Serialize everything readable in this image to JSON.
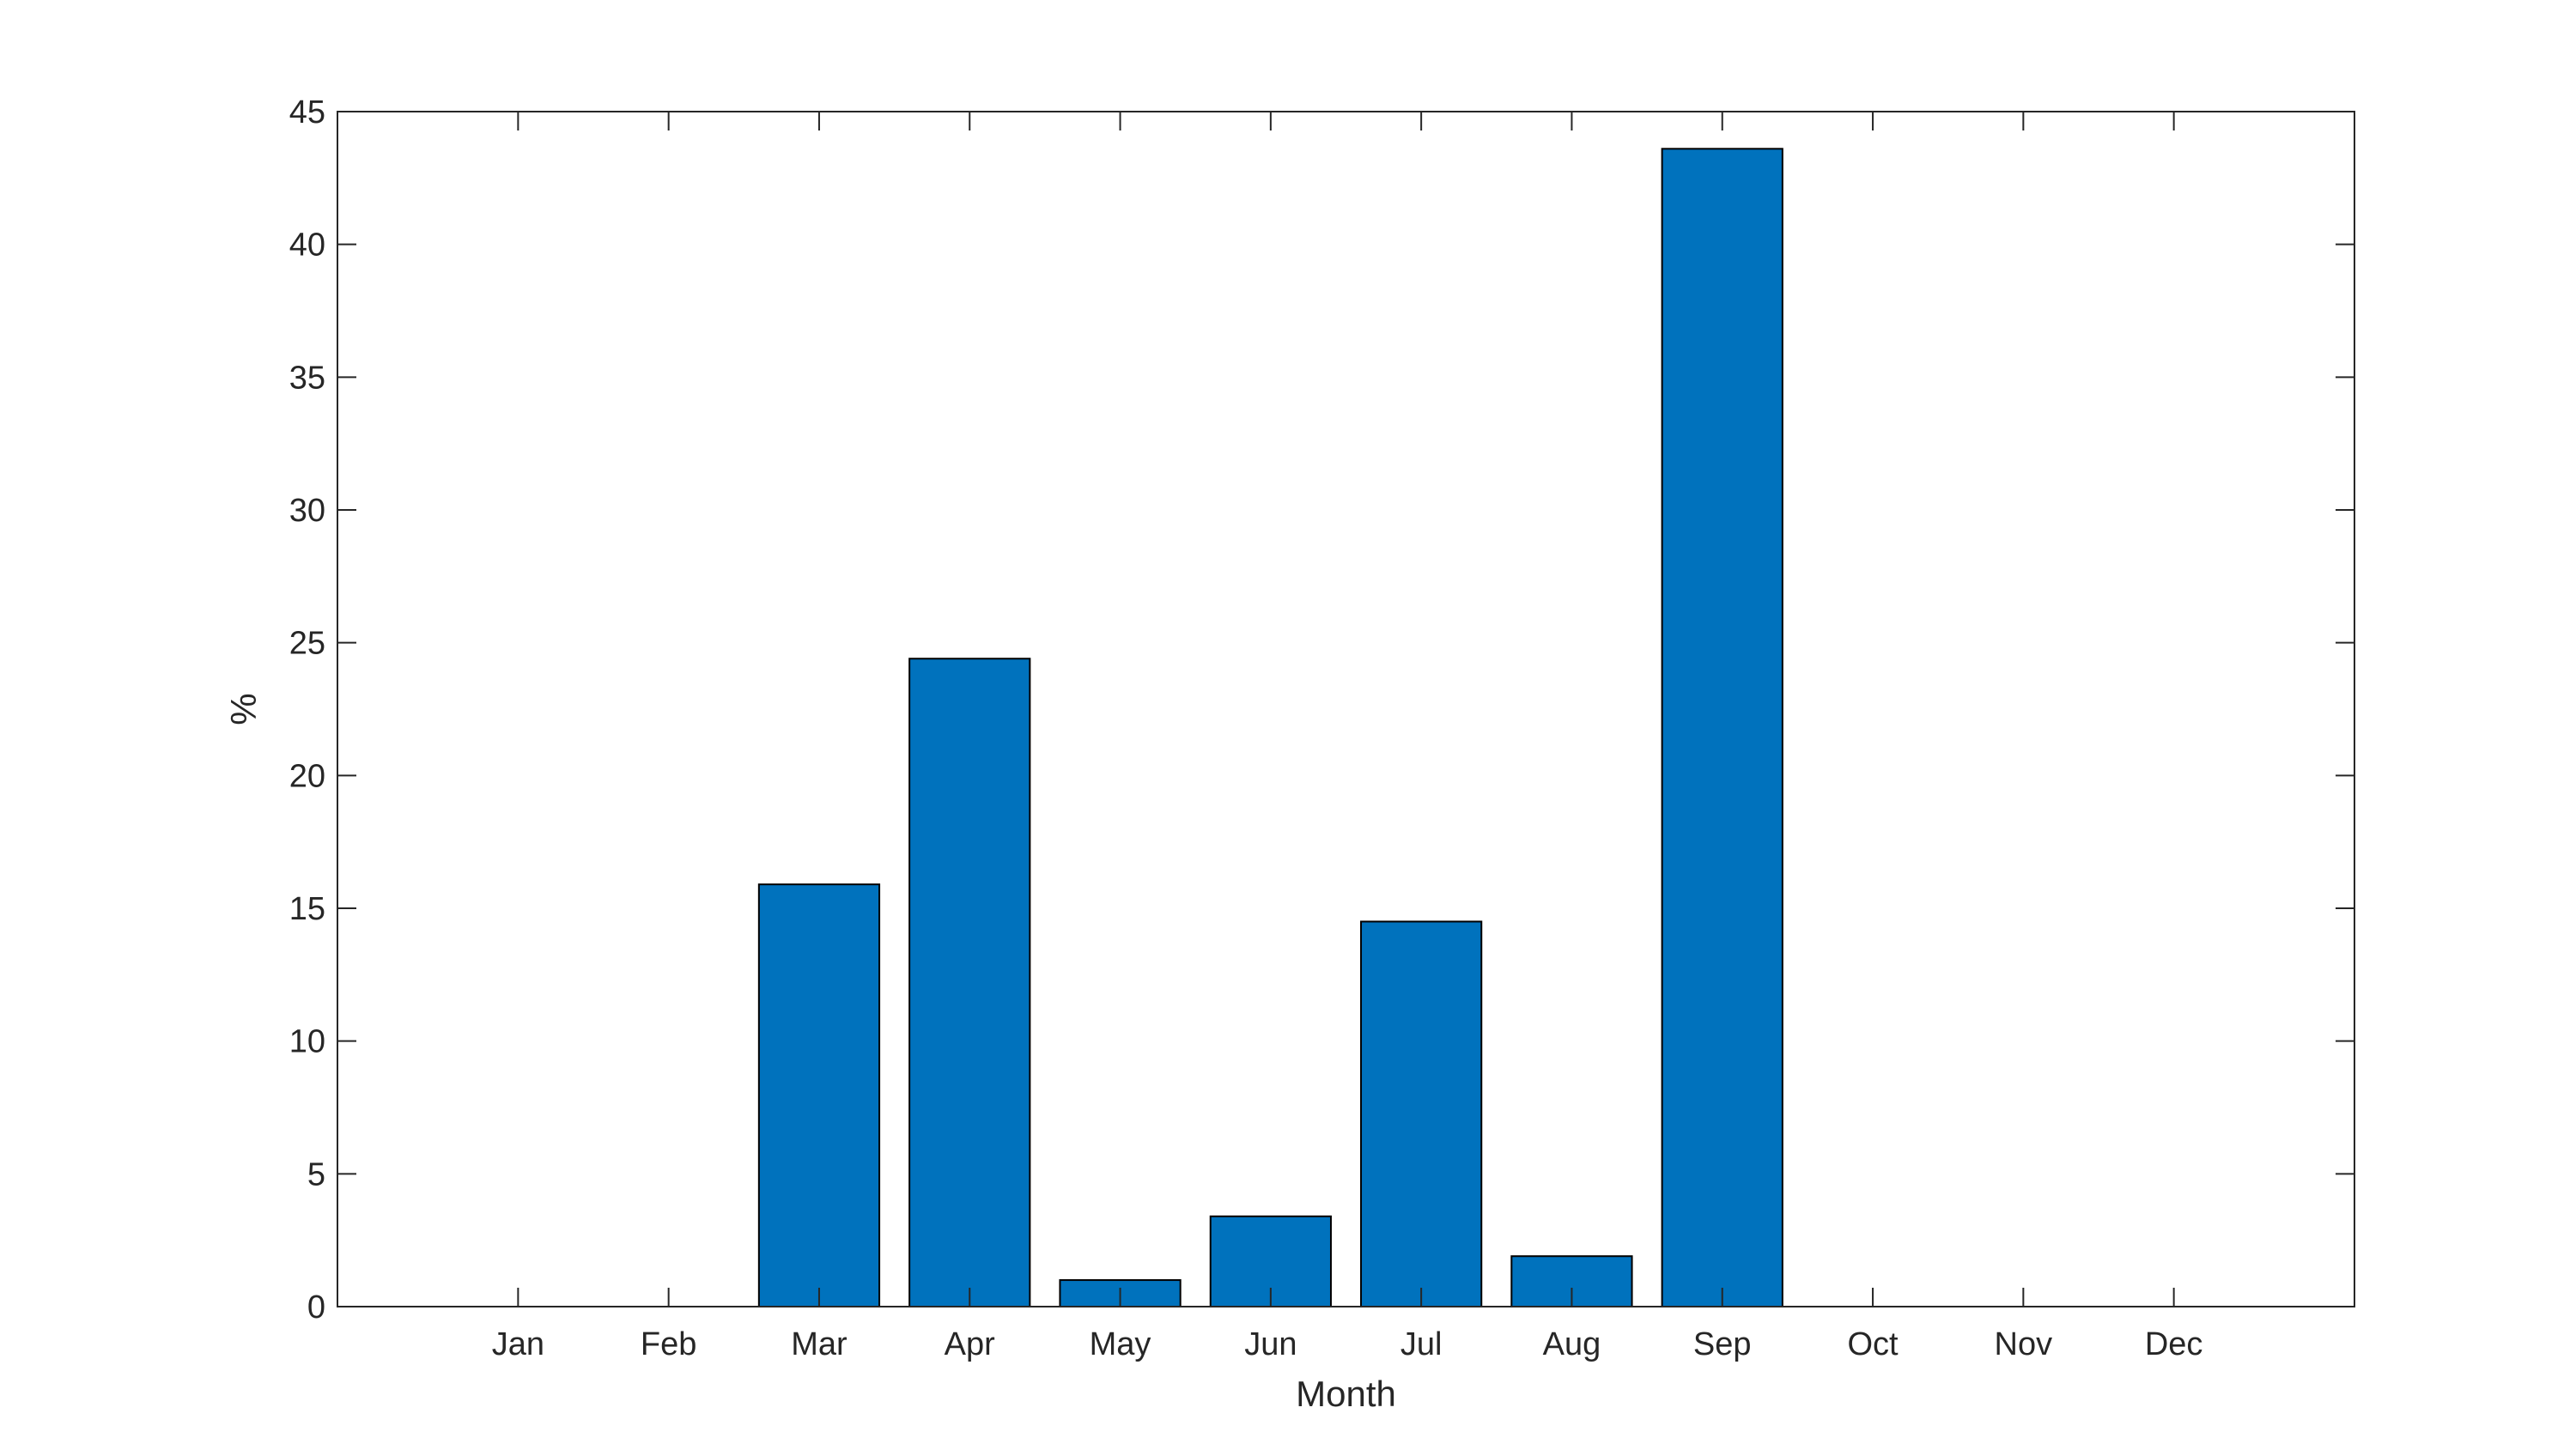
{
  "chart_data": {
    "type": "bar",
    "title": "",
    "xlabel": "Month",
    "ylabel": "%",
    "categories": [
      "Jan",
      "Feb",
      "Mar",
      "Apr",
      "May",
      "Jun",
      "Jul",
      "Aug",
      "Sep",
      "Oct",
      "Nov",
      "Dec"
    ],
    "values": [
      0,
      0,
      15.9,
      24.4,
      1.0,
      3.4,
      14.5,
      1.9,
      43.6,
      0,
      0,
      0
    ],
    "ylim": [
      0,
      45
    ],
    "xlim": [
      -0.2,
      13.2
    ],
    "yticks": [
      0,
      5,
      10,
      15,
      20,
      25,
      30,
      35,
      40,
      45
    ],
    "grid": false,
    "legend": "none",
    "bar_color": "#0072bd",
    "edge_color": "#000000",
    "axis_color": "#262626"
  }
}
